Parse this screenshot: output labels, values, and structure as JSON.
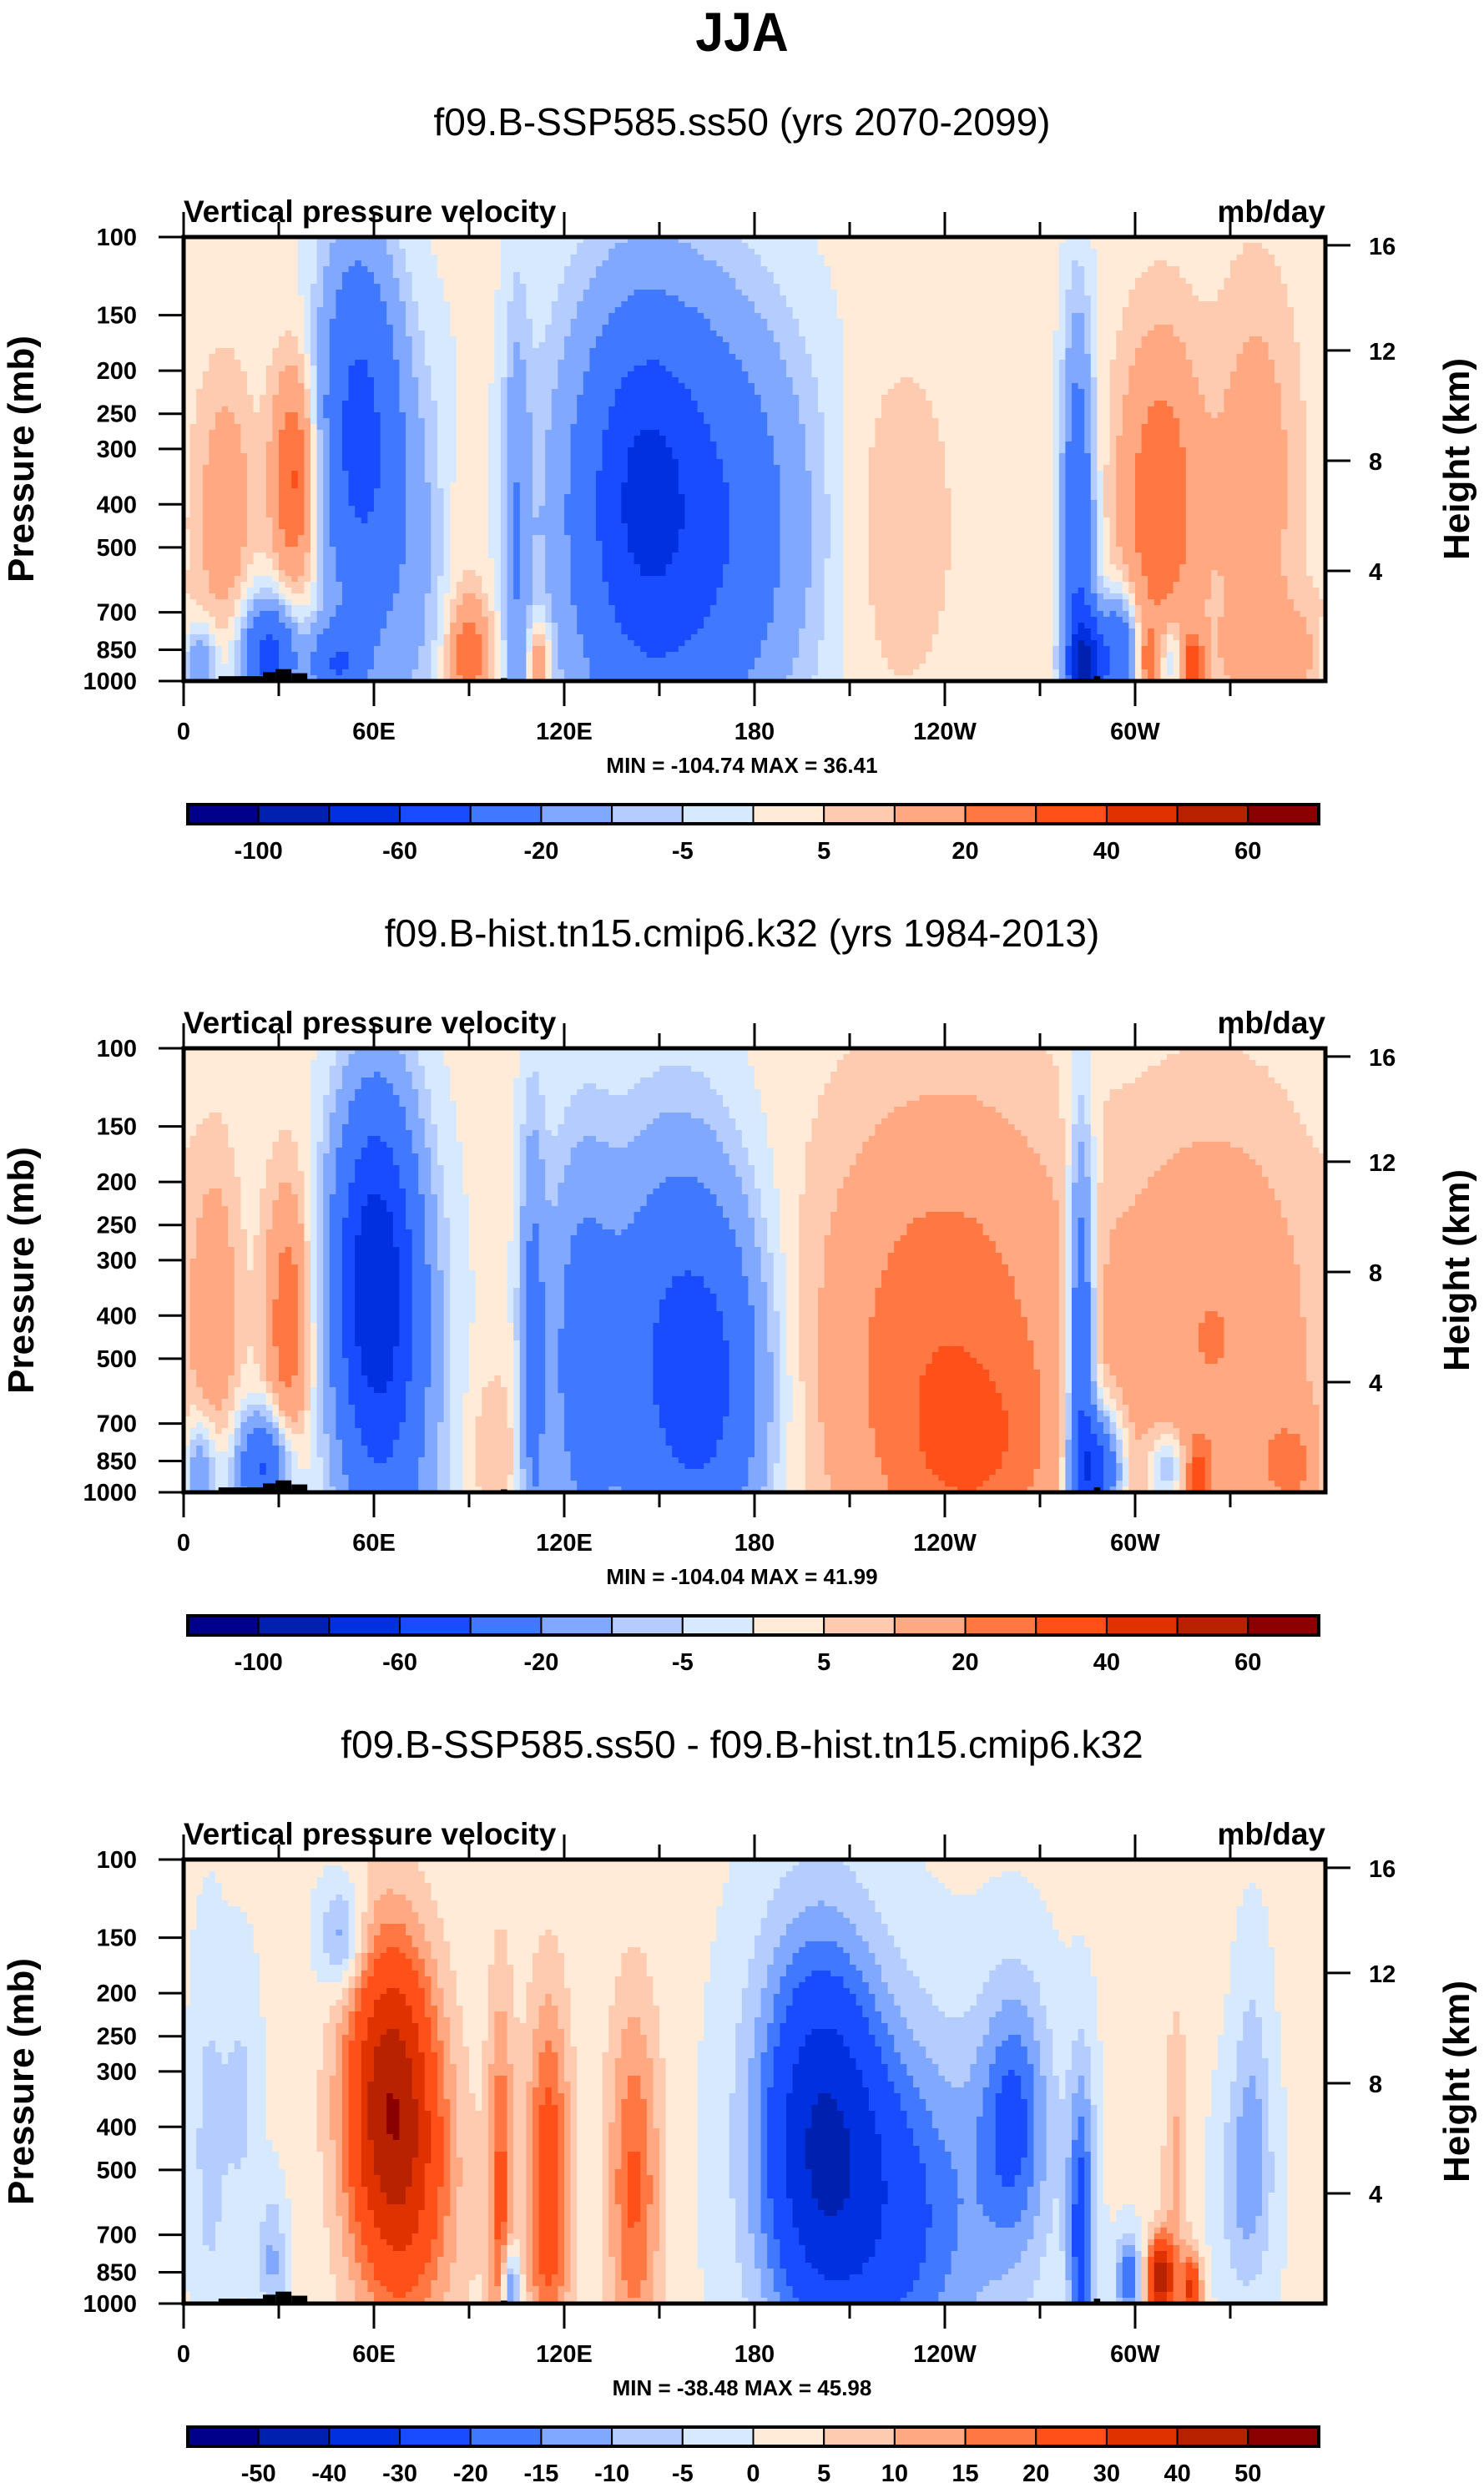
{
  "figure_title": "JJA",
  "chart_data": [
    {
      "type": "heatmap",
      "title": "f09.B-SSP585.ss50 (yrs 2070-2099)",
      "left_label": "Vertical pressure velocity",
      "units": "mb/day",
      "xlabel": "",
      "ylabel": "Pressure (mb)",
      "y2label": "Height (km)",
      "x_ticks": [
        "0",
        "60E",
        "120E",
        "180",
        "120W",
        "60W"
      ],
      "x_range_lon": [
        0,
        360
      ],
      "y_ticks": [
        100,
        150,
        200,
        250,
        300,
        400,
        500,
        700,
        850,
        1000
      ],
      "y_range_mb": [
        100,
        1000
      ],
      "y2_ticks": [
        4,
        8,
        12,
        16
      ],
      "min": -104.74,
      "max": 36.41,
      "stats_text": "MIN = -104.74  MAX =  36.41",
      "levels": [
        -100,
        -80,
        -60,
        -40,
        -20,
        -10,
        -5,
        0,
        5,
        10,
        20,
        30,
        40,
        50,
        60
      ],
      "colorbar_labels": [
        "-100",
        "-60",
        "-20",
        "-5",
        "5",
        "20",
        "40",
        "60"
      ],
      "colorbar_label_levels": [
        -100,
        -60,
        -20,
        -5,
        5,
        20,
        40,
        60
      ],
      "background": 2,
      "features": [
        {
          "lon": 8,
          "p": 450,
          "amp": 6,
          "wl": 5,
          "wp": 0.55
        },
        {
          "lon": 15,
          "p": 400,
          "amp": 12,
          "wl": 5,
          "wp": 0.45
        },
        {
          "lon": 35,
          "p": 350,
          "amp": 32,
          "wl": 5,
          "wp": 0.4
        },
        {
          "lon": 5,
          "p": 920,
          "amp": -25,
          "wl": 4,
          "wp": 0.15
        },
        {
          "lon": 27,
          "p": 880,
          "amp": -50,
          "wl": 6,
          "wp": 0.2
        },
        {
          "lon": 48,
          "p": 920,
          "amp": -35,
          "wl": 6,
          "wp": 0.15
        },
        {
          "lon": 55,
          "p": 270,
          "amp": -45,
          "wl": 9,
          "wp": 0.7
        },
        {
          "lon": 70,
          "p": 550,
          "amp": -14,
          "wl": 12,
          "wp": 0.8
        },
        {
          "lon": 90,
          "p": 880,
          "amp": 26,
          "wl": 5,
          "wp": 0.2
        },
        {
          "lon": 88,
          "p": 500,
          "amp": 6,
          "wl": 5,
          "wp": 0.5
        },
        {
          "lon": 105,
          "p": 500,
          "amp": -18,
          "wl": 3,
          "wp": 0.9
        },
        {
          "lon": 112,
          "p": 900,
          "amp": 22,
          "wl": 2.5,
          "wp": 0.15
        },
        {
          "lon": 140,
          "p": 430,
          "amp": -28,
          "wl": 18,
          "wp": 0.9
        },
        {
          "lon": 165,
          "p": 450,
          "amp": -38,
          "wl": 22,
          "wp": 0.8
        },
        {
          "lon": 145,
          "p": 350,
          "amp": -20,
          "wl": 10,
          "wp": 0.5
        },
        {
          "lon": 225,
          "p": 450,
          "amp": 8,
          "wl": 12,
          "wp": 0.6
        },
        {
          "lon": 282,
          "p": 500,
          "amp": -40,
          "wl": 3.5,
          "wp": 0.8
        },
        {
          "lon": 285,
          "p": 920,
          "amp": -70,
          "wl": 4,
          "wp": 0.18
        },
        {
          "lon": 295,
          "p": 850,
          "amp": -40,
          "wl": 4,
          "wp": 0.2
        },
        {
          "lon": 308,
          "p": 400,
          "amp": 27,
          "wl": 9,
          "wp": 0.6
        },
        {
          "lon": 304,
          "p": 900,
          "amp": 18,
          "wl": 2,
          "wp": 0.12
        },
        {
          "lon": 312,
          "p": 880,
          "amp": -15,
          "wl": 3,
          "wp": 0.15
        },
        {
          "lon": 318,
          "p": 930,
          "amp": 35,
          "wl": 2.5,
          "wp": 0.12
        },
        {
          "lon": 338,
          "p": 350,
          "amp": 14,
          "wl": 9,
          "wp": 0.7
        },
        {
          "lon": 345,
          "p": 880,
          "amp": 12,
          "wl": 12,
          "wp": 0.2
        }
      ]
    },
    {
      "type": "heatmap",
      "title": "f09.B-hist.tn15.cmip6.k32 (yrs 1984-2013)",
      "left_label": "Vertical pressure velocity",
      "units": "mb/day",
      "xlabel": "",
      "ylabel": "Pressure (mb)",
      "y2label": "Height (km)",
      "x_ticks": [
        "0",
        "60E",
        "120E",
        "180",
        "120W",
        "60W"
      ],
      "x_range_lon": [
        0,
        360
      ],
      "y_ticks": [
        100,
        150,
        200,
        250,
        300,
        400,
        500,
        700,
        850,
        1000
      ],
      "y_range_mb": [
        100,
        1000
      ],
      "y2_ticks": [
        4,
        8,
        12,
        16
      ],
      "min": -104.04,
      "max": 41.99,
      "stats_text": "MIN = -104.04  MAX =  41.99",
      "levels": [
        -100,
        -80,
        -60,
        -40,
        -20,
        -10,
        -5,
        0,
        5,
        10,
        20,
        30,
        40,
        50,
        60
      ],
      "colorbar_labels": [
        "-100",
        "-60",
        "-20",
        "-5",
        "5",
        "20",
        "40",
        "60"
      ],
      "colorbar_label_levels": [
        -100,
        -60,
        -20,
        -5,
        5,
        20,
        40,
        60
      ],
      "background": 2,
      "features": [
        {
          "lon": 10,
          "p": 400,
          "amp": 14,
          "wl": 5,
          "wp": 0.55
        },
        {
          "lon": 33,
          "p": 420,
          "amp": 26,
          "wl": 5,
          "wp": 0.5
        },
        {
          "lon": 5,
          "p": 900,
          "amp": -25,
          "wl": 4,
          "wp": 0.2
        },
        {
          "lon": 25,
          "p": 880,
          "amp": -45,
          "wl": 6,
          "wp": 0.2
        },
        {
          "lon": 60,
          "p": 320,
          "amp": -62,
          "wl": 9,
          "wp": 0.65
        },
        {
          "lon": 65,
          "p": 600,
          "amp": -25,
          "wl": 12,
          "wp": 0.9
        },
        {
          "lon": 98,
          "p": 800,
          "amp": 8,
          "wl": 6,
          "wp": 0.3
        },
        {
          "lon": 110,
          "p": 500,
          "amp": -25,
          "wl": 3,
          "wp": 0.9
        },
        {
          "lon": 125,
          "p": 500,
          "amp": -25,
          "wl": 8,
          "wp": 0.8
        },
        {
          "lon": 155,
          "p": 500,
          "amp": -42,
          "wl": 16,
          "wp": 0.8
        },
        {
          "lon": 170,
          "p": 600,
          "amp": -20,
          "wl": 12,
          "wp": 0.6
        },
        {
          "lon": 240,
          "p": 500,
          "amp": 26,
          "wl": 28,
          "wp": 0.9
        },
        {
          "lon": 250,
          "p": 800,
          "amp": 12,
          "wl": 15,
          "wp": 0.3
        },
        {
          "lon": 283,
          "p": 500,
          "amp": -45,
          "wl": 3,
          "wp": 0.8
        },
        {
          "lon": 288,
          "p": 880,
          "amp": -55,
          "wl": 5,
          "wp": 0.2
        },
        {
          "lon": 325,
          "p": 450,
          "amp": 18,
          "wl": 22,
          "wp": 0.8
        },
        {
          "lon": 320,
          "p": 930,
          "amp": 25,
          "wl": 2.5,
          "wp": 0.12
        },
        {
          "lon": 310,
          "p": 880,
          "amp": -20,
          "wl": 4,
          "wp": 0.15
        },
        {
          "lon": 350,
          "p": 880,
          "amp": 15,
          "wl": 8,
          "wp": 0.2
        }
      ]
    },
    {
      "type": "heatmap",
      "title": "f09.B-SSP585.ss50 - f09.B-hist.tn15.cmip6.k32",
      "left_label": "Vertical pressure velocity",
      "units": "mb/day",
      "xlabel": "",
      "ylabel": "Pressure (mb)",
      "y2label": "Height (km)",
      "x_ticks": [
        "0",
        "60E",
        "120E",
        "180",
        "120W",
        "60W"
      ],
      "x_range_lon": [
        0,
        360
      ],
      "y_ticks": [
        100,
        150,
        200,
        250,
        300,
        400,
        500,
        700,
        850,
        1000
      ],
      "y_range_mb": [
        100,
        1000
      ],
      "y2_ticks": [
        4,
        8,
        12,
        16
      ],
      "min": -38.48,
      "max": 45.98,
      "stats_text": "MIN = -38.48  MAX =  45.98",
      "levels": [
        -50,
        -40,
        -30,
        -20,
        -15,
        -10,
        -5,
        0,
        5,
        10,
        15,
        20,
        30,
        40,
        50
      ],
      "colorbar_labels": [
        "-50",
        "-40",
        "-30",
        "-20",
        "-15",
        "-10",
        "-5",
        "0",
        "5",
        "10",
        "15",
        "20",
        "30",
        "40",
        "50"
      ],
      "colorbar_label_levels": [
        -50,
        -40,
        -30,
        -20,
        -15,
        -10,
        -5,
        0,
        5,
        10,
        15,
        20,
        30,
        40,
        50
      ],
      "background": 1,
      "features": [
        {
          "lon": 8,
          "p": 450,
          "amp": -8,
          "wl": 4,
          "wp": 0.7
        },
        {
          "lon": 18,
          "p": 350,
          "amp": -7,
          "wl": 4,
          "wp": 0.5
        },
        {
          "lon": 28,
          "p": 800,
          "amp": -12,
          "wl": 3,
          "wp": 0.25
        },
        {
          "lon": 50,
          "p": 150,
          "amp": -16,
          "wl": 5,
          "wp": 0.2
        },
        {
          "lon": 65,
          "p": 340,
          "amp": 42,
          "wl": 10,
          "wp": 0.6
        },
        {
          "lon": 72,
          "p": 620,
          "amp": 14,
          "wl": 12,
          "wp": 0.6
        },
        {
          "lon": 100,
          "p": 600,
          "amp": 20,
          "wl": 3,
          "wp": 0.8
        },
        {
          "lon": 115,
          "p": 550,
          "amp": 25,
          "wl": 5,
          "wp": 0.7
        },
        {
          "lon": 142,
          "p": 550,
          "amp": 20,
          "wl": 6,
          "wp": 0.7
        },
        {
          "lon": 103,
          "p": 920,
          "amp": -25,
          "wl": 2,
          "wp": 0.15
        },
        {
          "lon": 200,
          "p": 400,
          "amp": -34,
          "wl": 14,
          "wp": 0.75
        },
        {
          "lon": 225,
          "p": 650,
          "amp": -22,
          "wl": 22,
          "wp": 0.7
        },
        {
          "lon": 262,
          "p": 380,
          "amp": -20,
          "wl": 8,
          "wp": 0.5
        },
        {
          "lon": 283,
          "p": 700,
          "amp": -25,
          "wl": 3,
          "wp": 0.6
        },
        {
          "lon": 298,
          "p": 880,
          "amp": -22,
          "wl": 3,
          "wp": 0.15
        },
        {
          "lon": 308,
          "p": 880,
          "amp": 45,
          "wl": 3,
          "wp": 0.15
        },
        {
          "lon": 313,
          "p": 500,
          "amp": 10,
          "wl": 3,
          "wp": 0.6
        },
        {
          "lon": 318,
          "p": 930,
          "amp": 32,
          "wl": 2,
          "wp": 0.12
        },
        {
          "lon": 335,
          "p": 550,
          "amp": -12,
          "wl": 6,
          "wp": 0.4
        },
        {
          "lon": 337,
          "p": 300,
          "amp": -7,
          "wl": 4,
          "wp": 0.5
        }
      ]
    }
  ],
  "colors": {
    "palette": [
      "#00008b",
      "#0020b0",
      "#0030e0",
      "#1a4cff",
      "#4078ff",
      "#80a8ff",
      "#b4ccff",
      "#d6e9ff",
      "#ffebd8",
      "#ffcbb0",
      "#ffa882",
      "#ff7742",
      "#ff5019",
      "#e03200",
      "#b82200",
      "#8b0000"
    ],
    "topography": "#000000",
    "frame": "#000000"
  },
  "topography": [
    {
      "lon0": 7,
      "lon1": 11,
      "p": 990
    },
    {
      "lon0": 11,
      "lon1": 25,
      "p": 975
    },
    {
      "lon0": 25,
      "lon1": 29,
      "p": 955
    },
    {
      "lon0": 29,
      "lon1": 34,
      "p": 940
    },
    {
      "lon0": 34,
      "lon1": 39,
      "p": 960
    },
    {
      "lon0": 100,
      "lon1": 102,
      "p": 985
    },
    {
      "lon0": 287,
      "lon1": 289,
      "p": 975
    },
    {
      "lon0": 289,
      "lon1": 307,
      "p": 992
    }
  ]
}
